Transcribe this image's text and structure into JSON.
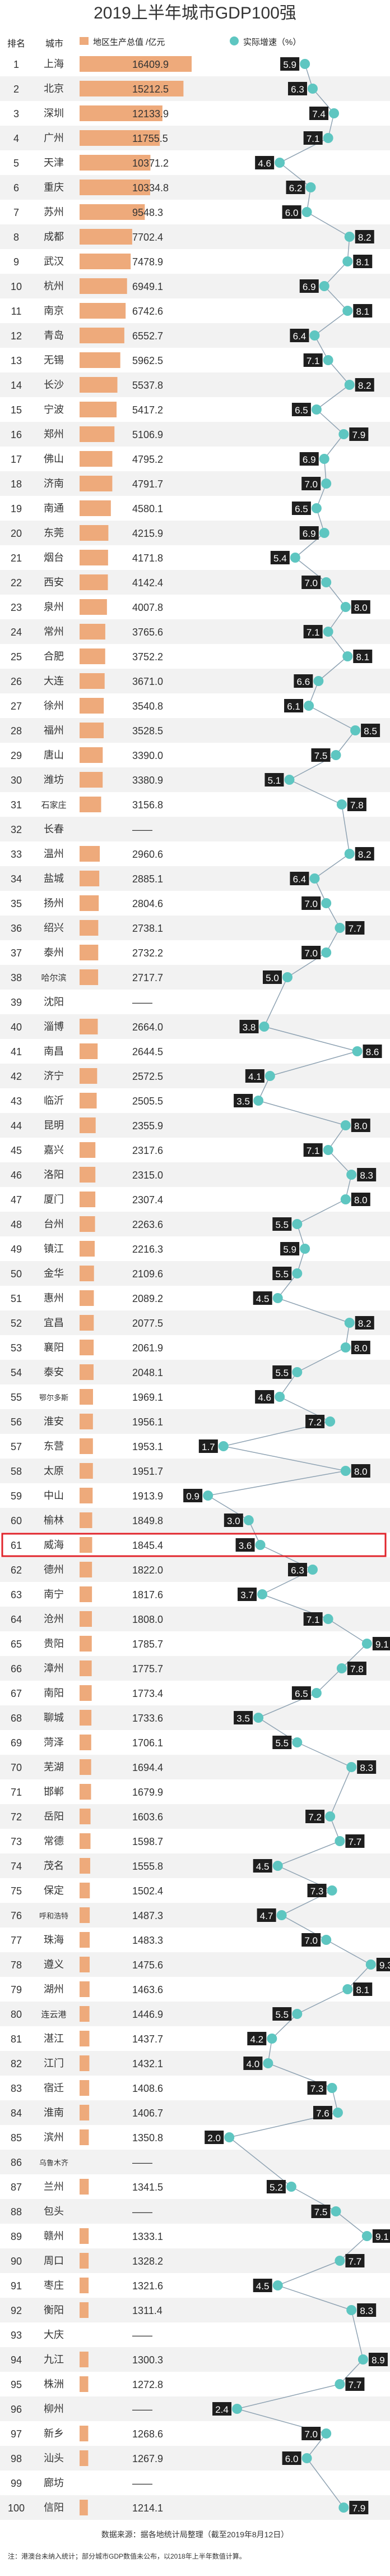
{
  "title": "2019上半年城市GDP100强",
  "header": {
    "rank": "排名",
    "city": "城市"
  },
  "chart_data": {
    "type": "bar",
    "title": "2019上半年城市GDP100强",
    "highlight_rank": 61,
    "colors": {
      "bar": "#eeaa7b",
      "dot": "#5ec6c1",
      "label_bg": "#1e1e1e",
      "highlight": "#e0242b"
    },
    "series": [
      {
        "name": "地区生产总值",
        "unit": "亿元",
        "type": "bar"
      },
      {
        "name": "实际增速",
        "unit": "%",
        "type": "line"
      }
    ],
    "rows": [
      {
        "rank": 1,
        "city": "上海",
        "gdp": "16409.9",
        "growth": 5.9
      },
      {
        "rank": 2,
        "city": "北京",
        "gdp": "15212.5",
        "growth": 6.3
      },
      {
        "rank": 3,
        "city": "深圳",
        "gdp": "12133.9",
        "growth": 7.4
      },
      {
        "rank": 4,
        "city": "广州",
        "gdp": "11755.5",
        "growth": 7.1
      },
      {
        "rank": 5,
        "city": "天津",
        "gdp": "10371.2",
        "growth": 4.6
      },
      {
        "rank": 6,
        "city": "重庆",
        "gdp": "10334.8",
        "growth": 6.2
      },
      {
        "rank": 7,
        "city": "苏州",
        "gdp": "9548.3",
        "growth": 6.0
      },
      {
        "rank": 8,
        "city": "成都",
        "gdp": "7702.4",
        "growth": 8.2
      },
      {
        "rank": 9,
        "city": "武汉",
        "gdp": "7478.9",
        "growth": 8.1
      },
      {
        "rank": 10,
        "city": "杭州",
        "gdp": "6949.1",
        "growth": 6.9
      },
      {
        "rank": 11,
        "city": "南京",
        "gdp": "6742.6",
        "growth": 8.1
      },
      {
        "rank": 12,
        "city": "青岛",
        "gdp": "6552.7",
        "growth": 6.4
      },
      {
        "rank": 13,
        "city": "无锡",
        "gdp": "5962.5",
        "growth": 7.1
      },
      {
        "rank": 14,
        "city": "长沙",
        "gdp": "5537.8",
        "growth": 8.2
      },
      {
        "rank": 15,
        "city": "宁波",
        "gdp": "5417.2",
        "growth": 6.5
      },
      {
        "rank": 16,
        "city": "郑州",
        "gdp": "5106.9",
        "growth": 7.9
      },
      {
        "rank": 17,
        "city": "佛山",
        "gdp": "4795.2",
        "growth": 6.9
      },
      {
        "rank": 18,
        "city": "济南",
        "gdp": "4791.7",
        "growth": 7.0
      },
      {
        "rank": 19,
        "city": "南通",
        "gdp": "4580.1",
        "growth": 6.5
      },
      {
        "rank": 20,
        "city": "东莞",
        "gdp": "4215.9",
        "growth": 6.9
      },
      {
        "rank": 21,
        "city": "烟台",
        "gdp": "4171.8",
        "growth": 5.4
      },
      {
        "rank": 22,
        "city": "西安",
        "gdp": "4142.4",
        "growth": 7.0
      },
      {
        "rank": 23,
        "city": "泉州",
        "gdp": "4007.8",
        "growth": 8.0
      },
      {
        "rank": 24,
        "city": "常州",
        "gdp": "3765.6",
        "growth": 7.1
      },
      {
        "rank": 25,
        "city": "合肥",
        "gdp": "3752.2",
        "growth": 8.1
      },
      {
        "rank": 26,
        "city": "大连",
        "gdp": "3671.0",
        "growth": 6.6
      },
      {
        "rank": 27,
        "city": "徐州",
        "gdp": "3540.8",
        "growth": 6.1
      },
      {
        "rank": 28,
        "city": "福州",
        "gdp": "3528.5",
        "growth": 8.5
      },
      {
        "rank": 29,
        "city": "唐山",
        "gdp": "3390.0",
        "growth": 7.5
      },
      {
        "rank": 30,
        "city": "潍坊",
        "gdp": "3380.9",
        "growth": 5.1
      },
      {
        "rank": 31,
        "city": "石家庄",
        "gdp": "3156.8",
        "growth": 7.8
      },
      {
        "rank": 32,
        "city": "长春",
        "gdp": "——",
        "growth": null
      },
      {
        "rank": 33,
        "city": "温州",
        "gdp": "2960.6",
        "growth": 8.2
      },
      {
        "rank": 34,
        "city": "盐城",
        "gdp": "2885.1",
        "growth": 6.4
      },
      {
        "rank": 35,
        "city": "扬州",
        "gdp": "2804.6",
        "growth": 7.0
      },
      {
        "rank": 36,
        "city": "绍兴",
        "gdp": "2738.1",
        "growth": 7.7
      },
      {
        "rank": 37,
        "city": "泰州",
        "gdp": "2732.2",
        "growth": 7.0
      },
      {
        "rank": 38,
        "city": "哈尔滨",
        "gdp": "2717.7",
        "growth": 5.0
      },
      {
        "rank": 39,
        "city": "沈阳",
        "gdp": "——",
        "growth": null
      },
      {
        "rank": 40,
        "city": "淄博",
        "gdp": "2664.0",
        "growth": 3.8
      },
      {
        "rank": 41,
        "city": "南昌",
        "gdp": "2644.5",
        "growth": 8.6
      },
      {
        "rank": 42,
        "city": "济宁",
        "gdp": "2572.5",
        "growth": 4.1
      },
      {
        "rank": 43,
        "city": "临沂",
        "gdp": "2505.5",
        "growth": 3.5
      },
      {
        "rank": 44,
        "city": "昆明",
        "gdp": "2355.9",
        "growth": 8.0
      },
      {
        "rank": 45,
        "city": "嘉兴",
        "gdp": "2317.6",
        "growth": 7.1
      },
      {
        "rank": 46,
        "city": "洛阳",
        "gdp": "2315.0",
        "growth": 8.3
      },
      {
        "rank": 47,
        "city": "厦门",
        "gdp": "2307.4",
        "growth": 8.0
      },
      {
        "rank": 48,
        "city": "台州",
        "gdp": "2263.6",
        "growth": 5.5
      },
      {
        "rank": 49,
        "city": "镇江",
        "gdp": "2216.3",
        "growth": 5.9
      },
      {
        "rank": 50,
        "city": "金华",
        "gdp": "2109.6",
        "growth": 5.5
      },
      {
        "rank": 51,
        "city": "惠州",
        "gdp": "2089.2",
        "growth": 4.5
      },
      {
        "rank": 52,
        "city": "宜昌",
        "gdp": "2077.5",
        "growth": 8.2
      },
      {
        "rank": 53,
        "city": "襄阳",
        "gdp": "2061.9",
        "growth": 8.0
      },
      {
        "rank": 54,
        "city": "泰安",
        "gdp": "2048.1",
        "growth": 5.5
      },
      {
        "rank": 55,
        "city": "鄂尔多斯",
        "gdp": "1969.1",
        "growth": 4.6
      },
      {
        "rank": 56,
        "city": "淮安",
        "gdp": "1956.1",
        "growth": 7.2
      },
      {
        "rank": 57,
        "city": "东营",
        "gdp": "1953.1",
        "growth": 1.7
      },
      {
        "rank": 58,
        "city": "太原",
        "gdp": "1951.7",
        "growth": 8.0
      },
      {
        "rank": 59,
        "city": "中山",
        "gdp": "1913.9",
        "growth": 0.9
      },
      {
        "rank": 60,
        "city": "榆林",
        "gdp": "1849.8",
        "growth": 3.0
      },
      {
        "rank": 61,
        "city": "威海",
        "gdp": "1845.4",
        "growth": 3.6
      },
      {
        "rank": 62,
        "city": "德州",
        "gdp": "1822.0",
        "growth": 6.3
      },
      {
        "rank": 63,
        "city": "南宁",
        "gdp": "1817.6",
        "growth": 3.7
      },
      {
        "rank": 64,
        "city": "沧州",
        "gdp": "1808.0",
        "growth": 7.1
      },
      {
        "rank": 65,
        "city": "贵阳",
        "gdp": "1785.7",
        "growth": 9.1
      },
      {
        "rank": 66,
        "city": "漳州",
        "gdp": "1775.7",
        "growth": 7.8
      },
      {
        "rank": 67,
        "city": "南阳",
        "gdp": "1773.4",
        "growth": 6.5
      },
      {
        "rank": 68,
        "city": "聊城",
        "gdp": "1733.6",
        "growth": 3.5
      },
      {
        "rank": 69,
        "city": "菏泽",
        "gdp": "1706.1",
        "growth": 5.5
      },
      {
        "rank": 70,
        "city": "芜湖",
        "gdp": "1694.4",
        "growth": 8.3
      },
      {
        "rank": 71,
        "city": "邯郸",
        "gdp": "1679.9",
        "growth": null
      },
      {
        "rank": 72,
        "city": "岳阳",
        "gdp": "1603.6",
        "growth": 7.2
      },
      {
        "rank": 73,
        "city": "常德",
        "gdp": "1598.7",
        "growth": 7.7
      },
      {
        "rank": 74,
        "city": "茂名",
        "gdp": "1555.8",
        "growth": 4.5
      },
      {
        "rank": 75,
        "city": "保定",
        "gdp": "1502.4",
        "growth": 7.3
      },
      {
        "rank": 76,
        "city": "呼和浩特",
        "gdp": "1487.3",
        "growth": 4.7
      },
      {
        "rank": 77,
        "city": "珠海",
        "gdp": "1483.3",
        "growth": 7.0
      },
      {
        "rank": 78,
        "city": "遵义",
        "gdp": "1475.6",
        "growth": 9.3
      },
      {
        "rank": 79,
        "city": "湖州",
        "gdp": "1463.6",
        "growth": 8.1
      },
      {
        "rank": 80,
        "city": "连云港",
        "gdp": "1446.9",
        "growth": 5.5
      },
      {
        "rank": 81,
        "city": "湛江",
        "gdp": "1437.7",
        "growth": 4.2
      },
      {
        "rank": 82,
        "city": "江门",
        "gdp": "1432.1",
        "growth": 4.0
      },
      {
        "rank": 83,
        "city": "宿迁",
        "gdp": "1408.6",
        "growth": 7.3
      },
      {
        "rank": 84,
        "city": "淮南",
        "gdp": "1406.7",
        "growth": 7.6
      },
      {
        "rank": 85,
        "city": "滨州",
        "gdp": "1350.8",
        "growth": 2.0
      },
      {
        "rank": 86,
        "city": "乌鲁木齐",
        "gdp": "——",
        "growth": null
      },
      {
        "rank": 87,
        "city": "兰州",
        "gdp": "1341.5",
        "growth": 5.2
      },
      {
        "rank": 88,
        "city": "包头",
        "gdp": "——",
        "growth": 7.5
      },
      {
        "rank": 89,
        "city": "赣州",
        "gdp": "1333.1",
        "growth": 9.1
      },
      {
        "rank": 90,
        "city": "周口",
        "gdp": "1328.2",
        "growth": 7.7
      },
      {
        "rank": 91,
        "city": "枣庄",
        "gdp": "1321.6",
        "growth": 4.5
      },
      {
        "rank": 92,
        "city": "衡阳",
        "gdp": "1311.4",
        "growth": 8.3
      },
      {
        "rank": 93,
        "city": "大庆",
        "gdp": "——",
        "growth": null
      },
      {
        "rank": 94,
        "city": "九江",
        "gdp": "1300.3",
        "growth": 8.9
      },
      {
        "rank": 95,
        "city": "株洲",
        "gdp": "1272.8",
        "growth": 7.7
      },
      {
        "rank": 96,
        "city": "柳州",
        "gdp": "——",
        "growth": 2.4
      },
      {
        "rank": 97,
        "city": "新乡",
        "gdp": "1268.6",
        "growth": 7.0
      },
      {
        "rank": 98,
        "city": "汕头",
        "gdp": "1267.9",
        "growth": 6.0
      },
      {
        "rank": 99,
        "city": "廊坊",
        "gdp": "——",
        "growth": null
      },
      {
        "rank": 100,
        "city": "信阳",
        "gdp": "1214.1",
        "growth": 7.9
      }
    ]
  },
  "legend": {
    "gdp": "地区生产总值 /亿元",
    "growth": "实际增速（%）"
  },
  "footer": {
    "source": "数据来源：据各地统计局整理（截至2019年8月12日）",
    "note": "注：港澳台未纳入统计；部分城市GDP数值未公布，以2018年上半年数值计算。"
  }
}
